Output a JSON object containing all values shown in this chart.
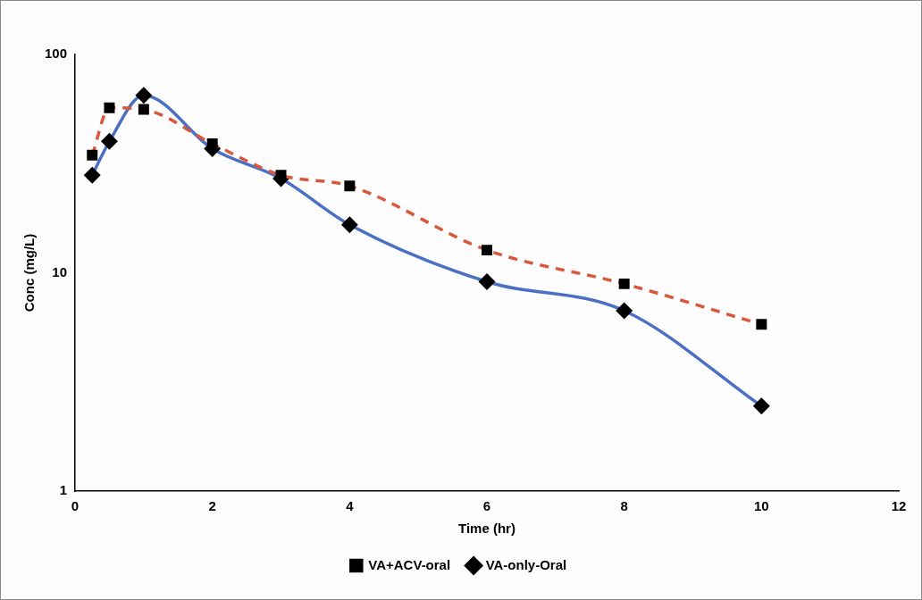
{
  "chart_data": {
    "type": "line",
    "xlabel": "Time (hr)",
    "ylabel": "Conc (mg/L)",
    "x": [
      0.25,
      0.5,
      1,
      2,
      3,
      4,
      6,
      8,
      10
    ],
    "series": [
      {
        "name": "VA-only-Oral",
        "color": "#4a6fc4",
        "values": [
          28,
          40,
          65,
          37,
          27,
          16.6,
          9.1,
          6.7,
          2.45
        ],
        "marker": "diamond",
        "line_style": "solid"
      },
      {
        "name": "VA+ACV-oral",
        "color": "#d9583b",
        "values": [
          34.6,
          57,
          56,
          39,
          28,
          25,
          12.7,
          8.9,
          5.8
        ],
        "marker": "square",
        "line_style": "dashed"
      }
    ],
    "xlim": [
      0,
      12
    ],
    "xticks": [
      0,
      2,
      4,
      6,
      8,
      10,
      12
    ],
    "ylim": [
      1,
      100
    ],
    "yticks": [
      1,
      10,
      100
    ],
    "log": "y",
    "grid": false,
    "legend": "bottom"
  }
}
